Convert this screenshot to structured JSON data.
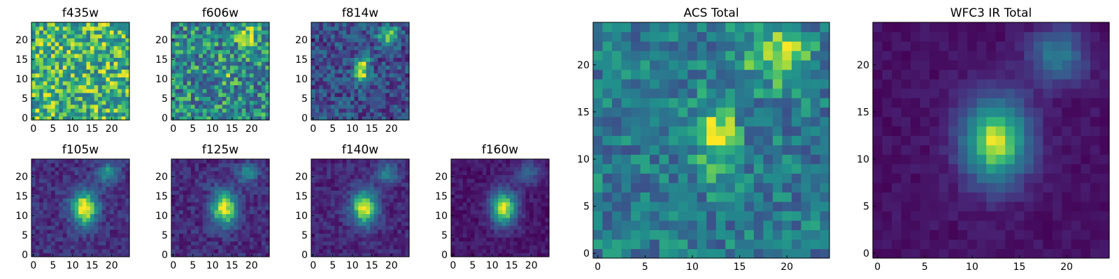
{
  "chart_data": [
    {
      "id": "f435w",
      "type": "heatmap",
      "title": "f435w",
      "xticks": [
        "0",
        "5",
        "10",
        "15",
        "20"
      ],
      "yticks": [
        "0",
        "5",
        "10",
        "15",
        "20"
      ],
      "xlim": [
        0,
        25
      ],
      "ylim": [
        0,
        25
      ],
      "colormap": "viridis",
      "sources": [],
      "background": 0.72,
      "noise": 0.28
    },
    {
      "id": "f606w",
      "type": "heatmap",
      "title": "f606w",
      "xticks": [
        "0",
        "5",
        "10",
        "15",
        "20"
      ],
      "yticks": [
        "0",
        "5",
        "10",
        "15",
        "20"
      ],
      "xlim": [
        0,
        25
      ],
      "ylim": [
        0,
        25
      ],
      "colormap": "viridis",
      "sources": [
        {
          "x": 19,
          "y": 21,
          "amp": 0.25,
          "sx": 2,
          "sy": 2
        },
        {
          "x": 13,
          "y": 12,
          "amp": 0.15,
          "sx": 1.5,
          "sy": 2
        }
      ],
      "background": 0.55,
      "noise": 0.3
    },
    {
      "id": "f814w",
      "type": "heatmap",
      "title": "f814w",
      "xticks": [
        "0",
        "5",
        "10",
        "15",
        "20"
      ],
      "yticks": [
        "0",
        "5",
        "10",
        "15",
        "20"
      ],
      "xlim": [
        0,
        25
      ],
      "ylim": [
        0,
        25
      ],
      "colormap": "viridis",
      "sources": [
        {
          "x": 12.5,
          "y": 12.5,
          "amp": 0.7,
          "sx": 1.2,
          "sy": 2.2
        },
        {
          "x": 19,
          "y": 21.5,
          "amp": 0.6,
          "sx": 1.8,
          "sy": 1.4
        }
      ],
      "background": 0.3,
      "noise": 0.22
    },
    {
      "id": "f105w",
      "type": "heatmap",
      "title": "f105w",
      "xticks": [
        "0",
        "5",
        "10",
        "15",
        "20"
      ],
      "yticks": [
        "0",
        "5",
        "10",
        "15",
        "20"
      ],
      "xlim": [
        0,
        25
      ],
      "ylim": [
        0,
        25
      ],
      "colormap": "viridis",
      "sources": [
        {
          "x": 13,
          "y": 12,
          "amp": 0.85,
          "sx": 2.2,
          "sy": 3
        },
        {
          "x": 19,
          "y": 21,
          "amp": 0.45,
          "sx": 1.8,
          "sy": 1.8
        }
      ],
      "background": 0.18,
      "noise": 0.12
    },
    {
      "id": "f125w",
      "type": "heatmap",
      "title": "f125w",
      "xticks": [
        "0",
        "5",
        "10",
        "15",
        "20"
      ],
      "yticks": [
        "0",
        "5",
        "10",
        "15",
        "20"
      ],
      "xlim": [
        0,
        25
      ],
      "ylim": [
        0,
        25
      ],
      "colormap": "viridis",
      "sources": [
        {
          "x": 13,
          "y": 12,
          "amp": 0.85,
          "sx": 2.2,
          "sy": 3
        },
        {
          "x": 19,
          "y": 21,
          "amp": 0.42,
          "sx": 1.8,
          "sy": 1.8
        }
      ],
      "background": 0.16,
      "noise": 0.12
    },
    {
      "id": "f140w",
      "type": "heatmap",
      "title": "f140w",
      "xticks": [
        "0",
        "5",
        "10",
        "15",
        "20"
      ],
      "yticks": [
        "0",
        "5",
        "10",
        "15",
        "20"
      ],
      "xlim": [
        0,
        25
      ],
      "ylim": [
        0,
        25
      ],
      "colormap": "viridis",
      "sources": [
        {
          "x": 13,
          "y": 12,
          "amp": 0.85,
          "sx": 2.2,
          "sy": 3
        },
        {
          "x": 19,
          "y": 21,
          "amp": 0.4,
          "sx": 1.8,
          "sy": 1.8
        }
      ],
      "background": 0.14,
      "noise": 0.1
    },
    {
      "id": "f160w",
      "type": "heatmap",
      "title": "f160w",
      "xticks": [
        "0",
        "5",
        "10",
        "15",
        "20"
      ],
      "yticks": [
        "0",
        "5",
        "10",
        "15",
        "20"
      ],
      "xlim": [
        0,
        25
      ],
      "ylim": [
        0,
        25
      ],
      "colormap": "viridis",
      "sources": [
        {
          "x": 13,
          "y": 12,
          "amp": 0.88,
          "sx": 2.2,
          "sy": 3
        },
        {
          "x": 19,
          "y": 21,
          "amp": 0.38,
          "sx": 1.8,
          "sy": 1.8
        }
      ],
      "background": 0.08,
      "noise": 0.08
    },
    {
      "id": "acs-total",
      "type": "heatmap",
      "title": "ACS Total",
      "xticks": [
        "0",
        "5",
        "10",
        "15",
        "20"
      ],
      "yticks": [
        "0",
        "5",
        "10",
        "15",
        "20"
      ],
      "xlim": [
        0,
        25
      ],
      "ylim": [
        0,
        25
      ],
      "colormap": "viridis",
      "sources": [
        {
          "x": 12.5,
          "y": 12.5,
          "amp": 0.45,
          "sx": 1.5,
          "sy": 2.5
        },
        {
          "x": 19,
          "y": 21,
          "amp": 0.4,
          "sx": 2.2,
          "sy": 2
        }
      ],
      "background": 0.5,
      "noise": 0.2
    },
    {
      "id": "wfc3-total",
      "type": "heatmap",
      "title": "WFC3 IR Total",
      "xticks": [
        "0",
        "5",
        "10",
        "15",
        "20"
      ],
      "yticks": [
        "0",
        "5",
        "10",
        "15",
        "20"
      ],
      "xlim": [
        0,
        25
      ],
      "ylim": [
        0,
        25
      ],
      "colormap": "viridis",
      "sources": [
        {
          "x": 12.5,
          "y": 12,
          "amp": 0.9,
          "sx": 2.3,
          "sy": 3
        },
        {
          "x": 19,
          "y": 21,
          "amp": 0.45,
          "sx": 1.9,
          "sy": 1.9
        }
      ],
      "background": 0.06,
      "noise": 0.05
    }
  ]
}
